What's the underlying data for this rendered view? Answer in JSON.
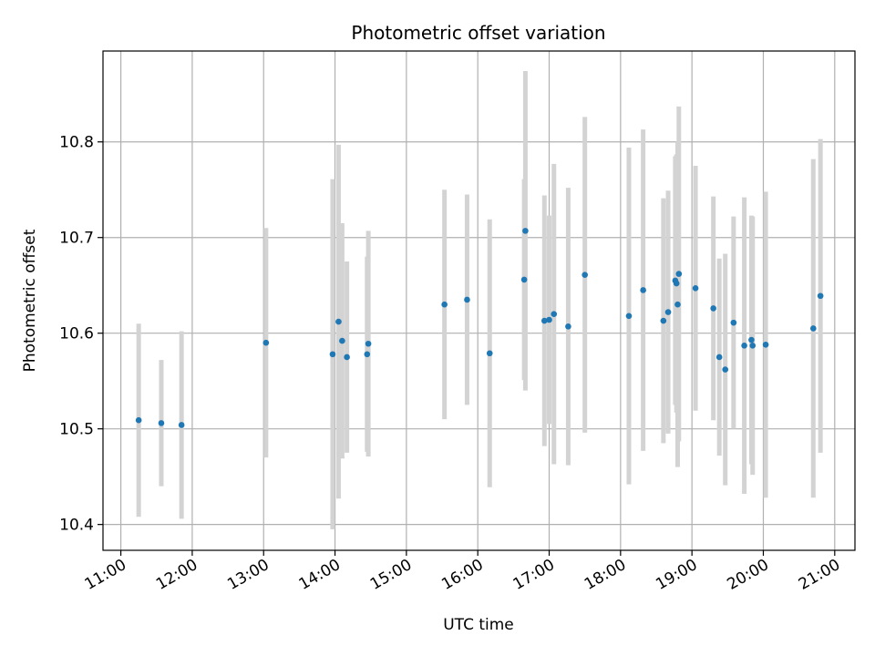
{
  "chart_data": {
    "type": "scatter",
    "title": "Photometric offset variation",
    "xlabel": "UTC time",
    "ylabel": "Photometric offset",
    "x_ticks": [
      "11:00",
      "12:00",
      "13:00",
      "14:00",
      "15:00",
      "16:00",
      "17:00",
      "18:00",
      "19:00",
      "20:00",
      "21:00"
    ],
    "y_ticks": [
      "10.4",
      "10.5",
      "10.6",
      "10.7",
      "10.8"
    ],
    "xlim": [
      "10:45",
      "21:17"
    ],
    "ylim": [
      10.373,
      10.895
    ],
    "grid": true,
    "marker_color": "#1f77b4",
    "errorbar_color": "#d3d3d3",
    "points": [
      {
        "x": "11:15",
        "y": 10.509,
        "err": 0.101
      },
      {
        "x": "11:34",
        "y": 10.506,
        "err": 0.066
      },
      {
        "x": "11:51",
        "y": 10.504,
        "err": 0.098
      },
      {
        "x": "13:02",
        "y": 10.59,
        "err": 0.12
      },
      {
        "x": "13:58",
        "y": 10.578,
        "err": 0.183
      },
      {
        "x": "14:03",
        "y": 10.612,
        "err": 0.185
      },
      {
        "x": "14:06",
        "y": 10.592,
        "err": 0.123
      },
      {
        "x": "14:10",
        "y": 10.575,
        "err": 0.1
      },
      {
        "x": "14:27",
        "y": 10.578,
        "err": 0.102
      },
      {
        "x": "14:28",
        "y": 10.589,
        "err": 0.118
      },
      {
        "x": "15:32",
        "y": 10.63,
        "err": 0.12
      },
      {
        "x": "15:51",
        "y": 10.635,
        "err": 0.11
      },
      {
        "x": "16:10",
        "y": 10.579,
        "err": 0.14
      },
      {
        "x": "16:39",
        "y": 10.656,
        "err": 0.105
      },
      {
        "x": "16:40",
        "y": 10.707,
        "err": 0.167
      },
      {
        "x": "16:56",
        "y": 10.613,
        "err": 0.131
      },
      {
        "x": "17:00",
        "y": 10.614,
        "err": 0.109
      },
      {
        "x": "17:04",
        "y": 10.62,
        "err": 0.157
      },
      {
        "x": "17:16",
        "y": 10.607,
        "err": 0.145
      },
      {
        "x": "17:30",
        "y": 10.661,
        "err": 0.165
      },
      {
        "x": "18:07",
        "y": 10.618,
        "err": 0.176
      },
      {
        "x": "18:19",
        "y": 10.645,
        "err": 0.168
      },
      {
        "x": "18:36",
        "y": 10.613,
        "err": 0.128
      },
      {
        "x": "18:40",
        "y": 10.622,
        "err": 0.127
      },
      {
        "x": "18:46",
        "y": 10.655,
        "err": 0.13
      },
      {
        "x": "18:47",
        "y": 10.652,
        "err": 0.135
      },
      {
        "x": "18:48",
        "y": 10.63,
        "err": 0.17
      },
      {
        "x": "18:49",
        "y": 10.662,
        "err": 0.175
      },
      {
        "x": "19:03",
        "y": 10.647,
        "err": 0.128
      },
      {
        "x": "19:18",
        "y": 10.626,
        "err": 0.117
      },
      {
        "x": "19:23",
        "y": 10.575,
        "err": 0.103
      },
      {
        "x": "19:28",
        "y": 10.562,
        "err": 0.121
      },
      {
        "x": "19:35",
        "y": 10.611,
        "err": 0.111
      },
      {
        "x": "19:44",
        "y": 10.587,
        "err": 0.155
      },
      {
        "x": "19:50",
        "y": 10.593,
        "err": 0.13
      },
      {
        "x": "19:51",
        "y": 10.587,
        "err": 0.135
      },
      {
        "x": "20:02",
        "y": 10.588,
        "err": 0.16
      },
      {
        "x": "20:42",
        "y": 10.605,
        "err": 0.177
      },
      {
        "x": "20:48",
        "y": 10.639,
        "err": 0.164
      }
    ]
  }
}
